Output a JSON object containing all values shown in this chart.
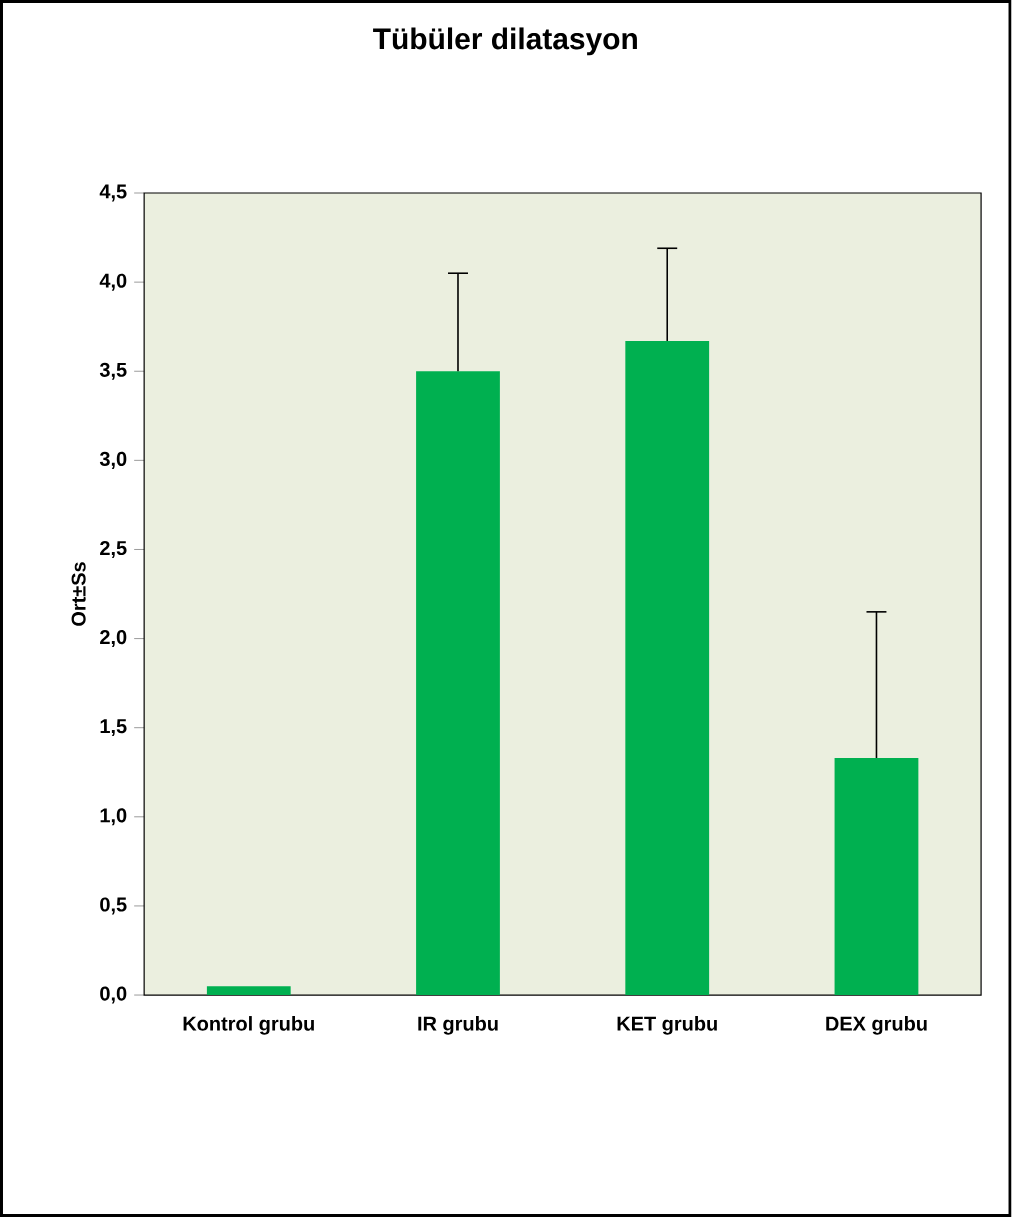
{
  "chart_data": {
    "type": "bar",
    "title": "Tübüler dilatasyon",
    "ylabel": "Ort±Ss",
    "categories": [
      "Kontrol grubu",
      "IR grubu",
      "KET grubu",
      "DEX grubu"
    ],
    "values": [
      0.05,
      3.5,
      3.67,
      1.33
    ],
    "errors": [
      null,
      [
        3.5,
        4.05
      ],
      [
        3.67,
        4.19
      ],
      [
        1.33,
        2.15
      ]
    ],
    "color": "#00b050",
    "ylim": [
      0,
      4.5
    ],
    "yticks": [
      {
        "value": 0,
        "label": "0,0"
      },
      {
        "value": 0.5,
        "label": "0,5"
      },
      {
        "value": 1,
        "label": "1,0"
      },
      {
        "value": 1.5,
        "label": "1,5"
      },
      {
        "value": 2,
        "label": "2,0"
      },
      {
        "value": 2.5,
        "label": "2,5"
      },
      {
        "value": 3,
        "label": "3,0"
      },
      {
        "value": 3.5,
        "label": "3,5"
      },
      {
        "value": 4,
        "label": "4,0"
      },
      {
        "value": 4.5,
        "label": "4,5"
      }
    ],
    "grid": false
  }
}
